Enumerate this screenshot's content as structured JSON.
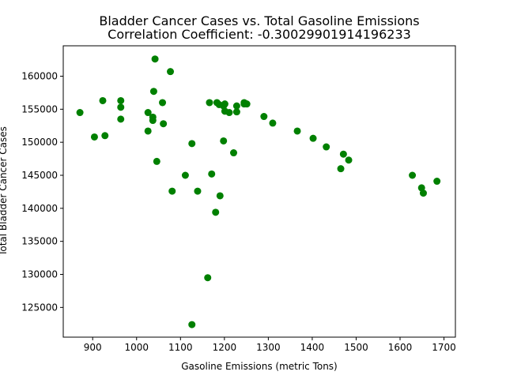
{
  "chart_data": {
    "type": "scatter",
    "title": "Bladder Cancer Cases vs. Total Gasoline Emissions",
    "subtitle": "Correlation Coefficient: -0.30029901914196233",
    "xlabel": "Gasoline Emissions (metric Tons)",
    "ylabel": "Total Bladder Cancer Cases",
    "xlim": [
      833,
      1726
    ],
    "ylim": [
      120500,
      164600
    ],
    "xticks": [
      900,
      1000,
      1100,
      1200,
      1300,
      1400,
      1500,
      1600,
      1700
    ],
    "yticks": [
      125000,
      130000,
      135000,
      140000,
      145000,
      150000,
      155000,
      160000
    ],
    "grid": false,
    "marker_color": "#008000",
    "points": [
      {
        "x": 871,
        "y": 154500
      },
      {
        "x": 904,
        "y": 150800
      },
      {
        "x": 923,
        "y": 156300
      },
      {
        "x": 928,
        "y": 151000
      },
      {
        "x": 964,
        "y": 156300
      },
      {
        "x": 964,
        "y": 155300
      },
      {
        "x": 964,
        "y": 153500
      },
      {
        "x": 1026,
        "y": 154500
      },
      {
        "x": 1026,
        "y": 151700
      },
      {
        "x": 1037,
        "y": 153800
      },
      {
        "x": 1037,
        "y": 153300
      },
      {
        "x": 1039,
        "y": 157700
      },
      {
        "x": 1042,
        "y": 162600
      },
      {
        "x": 1046,
        "y": 147100
      },
      {
        "x": 1059,
        "y": 156000
      },
      {
        "x": 1061,
        "y": 152800
      },
      {
        "x": 1077,
        "y": 160700
      },
      {
        "x": 1081,
        "y": 142600
      },
      {
        "x": 1111,
        "y": 145000
      },
      {
        "x": 1126,
        "y": 149800
      },
      {
        "x": 1126,
        "y": 122400
      },
      {
        "x": 1139,
        "y": 142600
      },
      {
        "x": 1162,
        "y": 129500
      },
      {
        "x": 1166,
        "y": 156000
      },
      {
        "x": 1171,
        "y": 145200
      },
      {
        "x": 1180,
        "y": 139400
      },
      {
        "x": 1183,
        "y": 156000
      },
      {
        "x": 1188,
        "y": 155700
      },
      {
        "x": 1190,
        "y": 141900
      },
      {
        "x": 1198,
        "y": 155500
      },
      {
        "x": 1198,
        "y": 150200
      },
      {
        "x": 1201,
        "y": 155800
      },
      {
        "x": 1201,
        "y": 154700
      },
      {
        "x": 1211,
        "y": 154500
      },
      {
        "x": 1221,
        "y": 148400
      },
      {
        "x": 1228,
        "y": 155500
      },
      {
        "x": 1228,
        "y": 154600
      },
      {
        "x": 1245,
        "y": 155800
      },
      {
        "x": 1245,
        "y": 156000
      },
      {
        "x": 1251,
        "y": 155800
      },
      {
        "x": 1290,
        "y": 153900
      },
      {
        "x": 1310,
        "y": 152900
      },
      {
        "x": 1366,
        "y": 151700
      },
      {
        "x": 1402,
        "y": 150600
      },
      {
        "x": 1432,
        "y": 149300
      },
      {
        "x": 1465,
        "y": 146000
      },
      {
        "x": 1471,
        "y": 148200
      },
      {
        "x": 1483,
        "y": 147300
      },
      {
        "x": 1628,
        "y": 145000
      },
      {
        "x": 1649,
        "y": 143100
      },
      {
        "x": 1653,
        "y": 142300
      },
      {
        "x": 1684,
        "y": 144100
      }
    ]
  }
}
